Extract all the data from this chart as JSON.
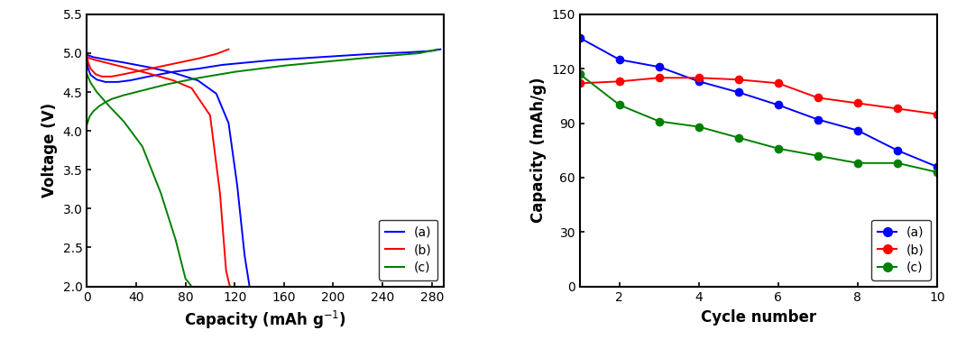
{
  "left_plot": {
    "xlabel": "Capacity (mAh g$^{-1}$)",
    "ylabel": "Voltage (V)",
    "xlim": [
      0,
      290
    ],
    "ylim": [
      2.0,
      5.5
    ],
    "xticks": [
      0,
      40,
      80,
      120,
      160,
      200,
      240,
      280
    ],
    "yticks": [
      2.0,
      2.5,
      3.0,
      3.5,
      4.0,
      4.5,
      5.0,
      5.5
    ],
    "legend_labels": [
      "(a)",
      "(b)",
      "(c)"
    ],
    "legend_colors": [
      "blue",
      "red",
      "green"
    ],
    "curves": {
      "a_charge": {
        "color": "blue",
        "x": [
          0,
          1,
          3,
          8,
          15,
          25,
          35,
          50,
          70,
          90,
          110,
          130,
          150,
          170,
          200,
          230,
          260,
          280,
          287
        ],
        "y": [
          4.9,
          4.8,
          4.72,
          4.66,
          4.63,
          4.63,
          4.65,
          4.7,
          4.76,
          4.8,
          4.85,
          4.88,
          4.91,
          4.93,
          4.96,
          4.99,
          5.01,
          5.03,
          5.05
        ]
      },
      "a_discharge": {
        "color": "blue",
        "x": [
          0,
          5,
          15,
          30,
          50,
          70,
          90,
          105,
          115,
          122,
          128,
          132
        ],
        "y": [
          4.98,
          4.95,
          4.92,
          4.88,
          4.82,
          4.75,
          4.65,
          4.48,
          4.1,
          3.3,
          2.4,
          2.0
        ]
      },
      "b_charge": {
        "color": "red",
        "x": [
          0,
          1,
          3,
          7,
          12,
          20,
          30,
          45,
          60,
          75,
          90,
          105,
          115
        ],
        "y": [
          4.98,
          4.88,
          4.8,
          4.73,
          4.7,
          4.7,
          4.73,
          4.78,
          4.83,
          4.88,
          4.93,
          4.99,
          5.05
        ]
      },
      "b_discharge": {
        "color": "red",
        "x": [
          0,
          5,
          15,
          30,
          50,
          70,
          85,
          100,
          108,
          113,
          116
        ],
        "y": [
          4.95,
          4.92,
          4.88,
          4.82,
          4.74,
          4.65,
          4.55,
          4.2,
          3.2,
          2.2,
          2.0
        ]
      },
      "c_charge": {
        "color": "green",
        "x": [
          0,
          2,
          5,
          10,
          15,
          20,
          30,
          45,
          65,
          90,
          120,
          160,
          200,
          240,
          270,
          285
        ],
        "y": [
          4.08,
          4.18,
          4.25,
          4.32,
          4.37,
          4.41,
          4.46,
          4.52,
          4.6,
          4.68,
          4.76,
          4.84,
          4.9,
          4.96,
          5.0,
          5.05
        ]
      },
      "c_discharge": {
        "color": "green",
        "x": [
          0,
          3,
          8,
          18,
          30,
          45,
          60,
          72,
          80,
          85
        ],
        "y": [
          4.73,
          4.62,
          4.5,
          4.32,
          4.12,
          3.8,
          3.2,
          2.6,
          2.1,
          2.0
        ]
      }
    }
  },
  "right_plot": {
    "xlabel": "Cycle number",
    "ylabel": "Capacity (mAh/g)",
    "xlim": [
      1,
      10
    ],
    "ylim": [
      0,
      150
    ],
    "xticks": [
      2,
      4,
      6,
      8,
      10
    ],
    "yticks": [
      0,
      30,
      60,
      90,
      120,
      150
    ],
    "series": {
      "a": {
        "color": "blue",
        "x": [
          1,
          2,
          3,
          4,
          5,
          6,
          7,
          8,
          9,
          10
        ],
        "y": [
          137,
          125,
          121,
          113,
          107,
          100,
          92,
          86,
          75,
          66
        ]
      },
      "b": {
        "color": "red",
        "x": [
          1,
          2,
          3,
          4,
          5,
          6,
          7,
          8,
          9,
          10
        ],
        "y": [
          112,
          113,
          115,
          115,
          114,
          112,
          104,
          101,
          98,
          95
        ]
      },
      "c": {
        "color": "green",
        "x": [
          1,
          2,
          3,
          4,
          5,
          6,
          7,
          8,
          9,
          10
        ],
        "y": [
          117,
          100,
          91,
          88,
          82,
          76,
          72,
          68,
          68,
          63
        ]
      }
    },
    "legend_labels": [
      "(a)",
      "(b)",
      "(c)"
    ]
  }
}
